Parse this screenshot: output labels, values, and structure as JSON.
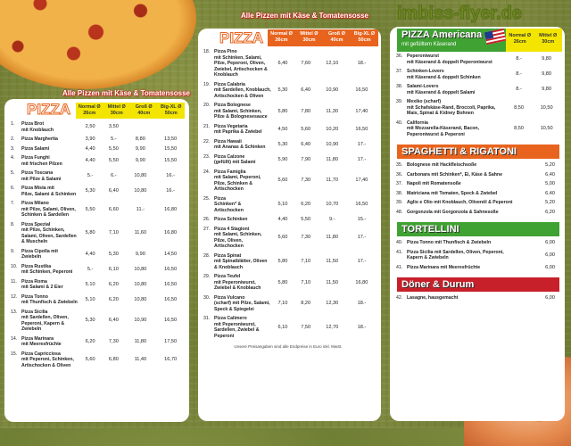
{
  "colors": {
    "orange": "#e8641e",
    "yellow": "#f3e500",
    "green": "#3fa232",
    "red": "#c8202a",
    "background": "#7a883c"
  },
  "watermark": "imbiss-flyer.de",
  "left": {
    "slogan": "Alle Pizzen mit Käse & Tomatensosse",
    "title": "PIZZA",
    "sizes": [
      "Normal Ø 26cm",
      "Mittel Ø 30cm",
      "Groß Ø 40cm",
      "Big-XL Ø 50cm"
    ],
    "items": [
      [
        "1.",
        "Pizza Brot",
        "mit Knoblauch",
        "2,50",
        "3,50",
        "",
        ""
      ],
      [
        "2.",
        "Pizza Margherita",
        "",
        "3,90",
        "5.-",
        "8,80",
        "13,50"
      ],
      [
        "3.",
        "Pizza Salami",
        "",
        "4,40",
        "5,50",
        "9,90",
        "15,50"
      ],
      [
        "4.",
        "Pizza Funghi",
        "mit frischen Pilzen",
        "4,40",
        "5,50",
        "9,90",
        "15,50"
      ],
      [
        "5.",
        "Pizza Toscana",
        "mit Pilze & Salami",
        "5.-",
        "6.-",
        "10,80",
        "16.-"
      ],
      [
        "6.",
        "Pizza Mista mit",
        "Pilze, Salami & Schinken",
        "5,30",
        "6,40",
        "10,80",
        "16.-"
      ],
      [
        "7.",
        "Pizza Milano",
        "mit Pilze, Salami, Oliven, Schinken & Sardellen",
        "5,50",
        "6,60",
        "11.-",
        "16,80"
      ],
      [
        "8.",
        "Pizza Spezial",
        "mit Pilze, Schinken, Salami, Oliven, Sardellen & Muscheln",
        "5,80",
        "7,10",
        "11,60",
        "16,80"
      ],
      [
        "9.",
        "Pizza Cipolla mit",
        "Zwiebeln",
        "4,40",
        "5,30",
        "9,90",
        "14,50"
      ],
      [
        "10.",
        "Pizza Rustika",
        "mit Schinken, Peperoni",
        "5.-",
        "6,10",
        "10,80",
        "16,50"
      ],
      [
        "11.",
        "Pizza Roma",
        "mit Salami & 2 Eier",
        "5.10",
        "6,20",
        "10,80",
        "16,50"
      ],
      [
        "12.",
        "Pizza Tonno",
        "mit Thunfisch & Zwiebeln",
        "5,10",
        "6,20",
        "10,80",
        "16,50"
      ],
      [
        "13.",
        "Pizza Sicilia",
        "mit Sardellen, Oliven, Peperoni, Kapern & Zwiebeln",
        "5,30",
        "6,40",
        "10,90",
        "16,50"
      ],
      [
        "14.",
        "Pizza Marinara",
        "mit Meeresfrüchte",
        "6,20",
        "7,30",
        "11,80",
        "17,50"
      ],
      [
        "15.",
        "Pizza Capricciosa",
        "mit Peperoni, Schinken, Artischocken & Oliven",
        "5,60",
        "6,80",
        "11,40",
        "16,70"
      ]
    ]
  },
  "middle": {
    "slogan": "Alle Pizzen mit Käse & Tomatensosse",
    "title": "PIZZA",
    "sizes": [
      "Normal Ø 26cm",
      "Mittel Ø 30cm",
      "Groß Ø 40cm",
      "Big-XL Ø 50cm"
    ],
    "items": [
      [
        "18.",
        "Pizza Pino",
        "mit Schinken, Salami, Pilze, Peperoni, Oliven, Zwiebel, Artischocken & Knoblauch",
        "6,40",
        "7,60",
        "12,10",
        "18.-"
      ],
      [
        "19.",
        "Pizza Calabria",
        "mit Sardellen, Knoblauch, Artischocken & Oliven",
        "5,30",
        "6,40",
        "10,90",
        "16,50"
      ],
      [
        "20.",
        "Pizza Bolognese",
        "mit Salami, Schinken, Pilze & Bolognesesauce",
        "5,80",
        "7,80",
        "11,30",
        "17,40"
      ],
      [
        "21.",
        "Pizza Vegetaria",
        "mit Paprika & Zwiebel",
        "4,50",
        "5,60",
        "10,20",
        "16,50"
      ],
      [
        "22.",
        "Pizza Hawaii",
        "mit Ananas & Schinken",
        "5,30",
        "6,40",
        "10,90",
        "17.-"
      ],
      [
        "23.",
        "Pizza Calzone",
        "(gefüllt) mit Salami",
        "5,90",
        "7,90",
        "11,80",
        "17.-"
      ],
      [
        "24.",
        "Pizza Famiglia",
        "mit Salami, Peperoni, Pilze, Schinken & Artischocken",
        "5,60",
        "7,30",
        "11,70",
        "17,40"
      ],
      [
        "25.",
        "Pizza",
        "Schinken* & Artischocken",
        "5,10",
        "6,20",
        "10,70",
        "16,50"
      ],
      [
        "26.",
        "Pizza Schinken",
        "",
        "4,40",
        "5,50",
        "9.-",
        "15.-"
      ],
      [
        "27.",
        "Pizza 4 Stagioni",
        "mit Salami, Schinken, Pilze, Oliven, Artischocken",
        "5,60",
        "7,30",
        "11,80",
        "17.-"
      ],
      [
        "28.",
        "Pizza Spinat",
        "mit Spinatblätter, Oliven & Knoblauch",
        "5,80",
        "7,10",
        "11,50",
        "17.-"
      ],
      [
        "29.",
        "Pizza Teufel",
        "mit Peperoniwurst, Zwiebel & Knoblauch",
        "5,80",
        "7,10",
        "11,50",
        "16,80"
      ],
      [
        "30.",
        "Pizza Vulcano",
        "(scharf) mit Pilze, Salami, Speck & Spiegelei",
        "7,10",
        "8,20",
        "12,30",
        "18.-"
      ],
      [
        "31.",
        "Pizza Calimero",
        "mit Peperoniwurst, Sardellen, Zwiebel & Peperoni",
        "6,10",
        "7,50",
        "12,70",
        "18.-"
      ]
    ],
    "note": "Unsere Preisangaben sind alle Endpreise in Euro inkl. MwSt."
  },
  "right": {
    "americana": {
      "title": "PIZZA Americana",
      "subtitle": "mit gefülltem Käserand",
      "sizes": [
        "Normal Ø 26cm",
        "Mittel Ø 30cm"
      ],
      "items": [
        [
          "36.",
          "Peperoniwurst",
          "mit Käserand & doppelt Peperoniwurst",
          "8.-",
          "9,80"
        ],
        [
          "37.",
          "Schinken-Lovers",
          "mit Käserand & doppelt Schinken",
          "8.-",
          "9,80"
        ],
        [
          "38.",
          "Salami-Lovers",
          "mit Käserand & doppelt Salami",
          "8.-",
          "9,80"
        ],
        [
          "39.",
          "Mexiko (scharf)",
          "mit Schafskäse-Rand, Broccoli, Paprika, Mais, Spinat & Kidney Bohnen",
          "8,50",
          "10,50"
        ],
        [
          "40.",
          "California",
          "mit Mozzarella-Käserand, Bacon, Peperoniwurst & Peperoni",
          "8,50",
          "10,50"
        ]
      ]
    },
    "spaghetti": {
      "title": "SPAGHETTI & RIGATONI",
      "items": [
        [
          "35.",
          "Bolognese mit Hackfleischsoße",
          "5,20"
        ],
        [
          "36.",
          "Carbonara mit Schinken*, Ei, Käse & Sahne",
          "6,40"
        ],
        [
          "37.",
          "Napoli mit Romatensoße",
          "5,00"
        ],
        [
          "38.",
          "Matriciana mit Tomaten, Speck & Zwiebel",
          "6,40"
        ],
        [
          "39.",
          "Aglio e Olio mit Knoblauch, Olivenöl & Peperoni",
          "5,20"
        ],
        [
          "48.",
          "Gorgonzola mit Gorgonzola & Sahnesoße",
          "6,20"
        ]
      ]
    },
    "tortellini": {
      "title": "TORTELLINI",
      "items": [
        [
          "40.",
          "Pizza Tonno mit Thunfisch & Zwiebeln",
          "6,00"
        ],
        [
          "41.",
          "Pizza Sicilia mit Sardellen, Oliven, Peperoni, Kapern & Zwiebeln",
          "6,00"
        ],
        [
          "41.",
          "Pizza Marinara mit Meeresfrüchte",
          "6,00"
        ]
      ]
    },
    "doener": {
      "title": "Döner & Durum",
      "items": [
        [
          "42.",
          "Lasagne, hausgemacht",
          "6,00"
        ]
      ]
    }
  }
}
